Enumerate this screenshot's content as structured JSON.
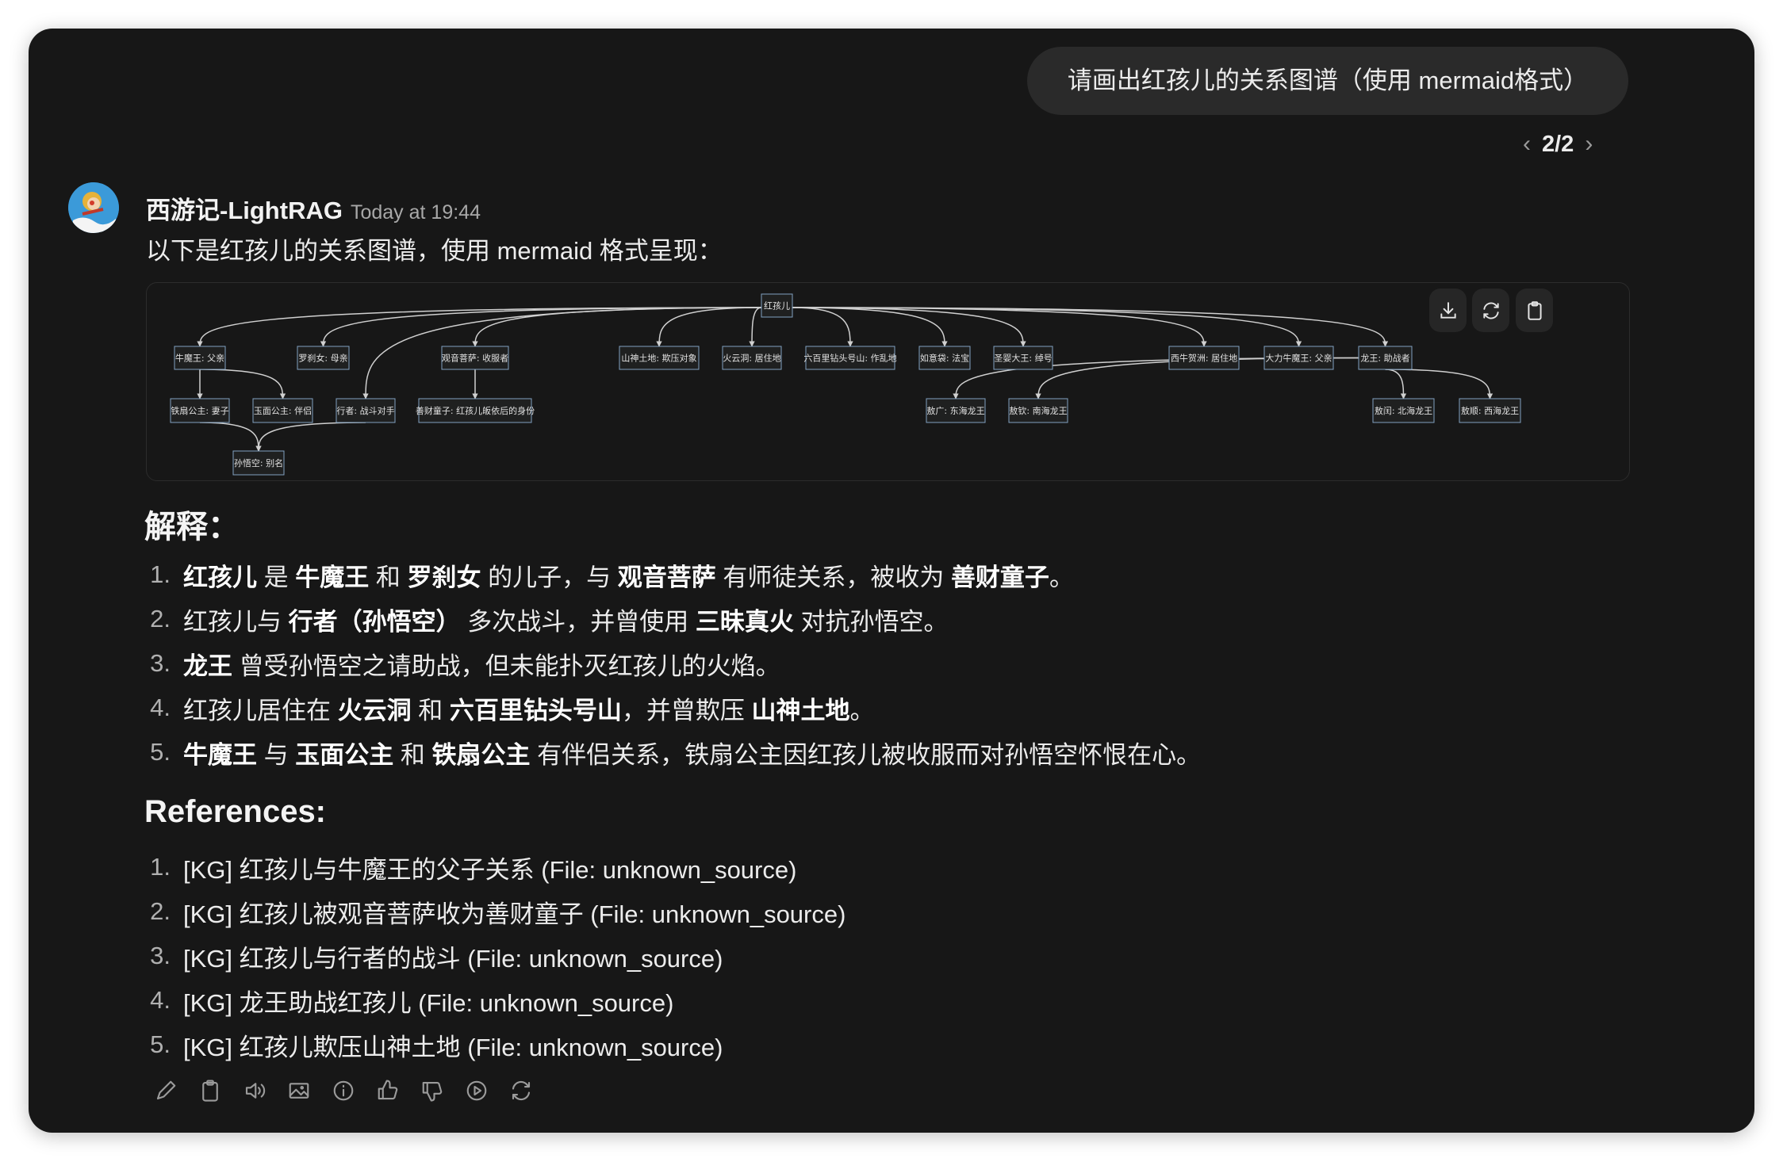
{
  "user_message": {
    "text": "请画出红孩儿的关系图谱（使用 mermaid格式）"
  },
  "pager": {
    "label": "2/2",
    "prev_icon": "chevron-left-icon",
    "next_icon": "chevron-right-icon"
  },
  "assistant": {
    "name": "西游记-LightRAG",
    "timestamp": "Today at 19:44",
    "avatar_icon": "monkey-king-avatar",
    "intro": "以下是红孩儿的关系图谱，使用 mermaid 格式呈现："
  },
  "diagram": {
    "toolbar": [
      "download-icon",
      "refresh-icon",
      "clipboard-icon"
    ],
    "nodes": [
      "红孩儿",
      "牛魔王: 父亲",
      "罗刹女: 母亲",
      "观音菩萨: 收服者",
      "山神土地: 欺压对象",
      "火云洞: 居住地",
      "六百里钻头号山: 作乱地",
      "如意袋: 法宝",
      "圣婴大王: 绰号",
      "西牛贺洲: 居住地",
      "大力牛魔王: 父亲",
      "龙王: 助战者",
      "铁扇公主: 妻子",
      "玉面公主: 伴侣",
      "行者: 战斗对手",
      "善财童子: 红孩儿皈依后的身份",
      "敖广: 东海龙王",
      "敖钦: 南海龙王",
      "敖闰: 北海龙王",
      "敖顺: 西海龙王",
      "孙悟空: 别名"
    ],
    "edges": [
      [
        0,
        1
      ],
      [
        0,
        2
      ],
      [
        0,
        3
      ],
      [
        0,
        4
      ],
      [
        0,
        5
      ],
      [
        0,
        6
      ],
      [
        0,
        7
      ],
      [
        0,
        8
      ],
      [
        0,
        9
      ],
      [
        0,
        10
      ],
      [
        0,
        11
      ],
      [
        0,
        14
      ],
      [
        1,
        12
      ],
      [
        1,
        13
      ],
      [
        3,
        15
      ],
      [
        12,
        20
      ],
      [
        14,
        20
      ],
      [
        11,
        16
      ],
      [
        11,
        17
      ],
      [
        11,
        18
      ],
      [
        11,
        19
      ]
    ],
    "colors": {
      "node_fill": "#1f2020",
      "node_border": "#81a1c1",
      "edge": "#d0d0d0",
      "text": "#e0e0e0"
    }
  },
  "explanation": {
    "heading": "解释：",
    "items": [
      [
        {
          "t": "红孩儿",
          "b": true
        },
        {
          "t": " 是 "
        },
        {
          "t": "牛魔王",
          "b": true
        },
        {
          "t": " 和 "
        },
        {
          "t": "罗刹女",
          "b": true
        },
        {
          "t": " 的儿子，与 "
        },
        {
          "t": "观音菩萨",
          "b": true
        },
        {
          "t": " 有师徒关系，被收为 "
        },
        {
          "t": "善财童子",
          "b": true
        },
        {
          "t": "。"
        }
      ],
      [
        {
          "t": "红孩儿与 "
        },
        {
          "t": "行者（孙悟空）",
          "b": true
        },
        {
          "t": " 多次战斗，并曾使用 "
        },
        {
          "t": "三昧真火",
          "b": true
        },
        {
          "t": " 对抗孙悟空。"
        }
      ],
      [
        {
          "t": "龙王",
          "b": true
        },
        {
          "t": " 曾受孙悟空之请助战，但未能扑灭红孩儿的火焰。"
        }
      ],
      [
        {
          "t": "红孩儿居住在 "
        },
        {
          "t": "火云洞",
          "b": true
        },
        {
          "t": " 和 "
        },
        {
          "t": "六百里钻头号山",
          "b": true
        },
        {
          "t": "，并曾欺压 "
        },
        {
          "t": "山神土地",
          "b": true
        },
        {
          "t": "。"
        }
      ],
      [
        {
          "t": "牛魔王",
          "b": true
        },
        {
          "t": " 与 "
        },
        {
          "t": "玉面公主",
          "b": true
        },
        {
          "t": " 和 "
        },
        {
          "t": "铁扇公主",
          "b": true
        },
        {
          "t": " 有伴侣关系，铁扇公主因红孩儿被收服而对孙悟空怀恨在心。"
        }
      ]
    ]
  },
  "references": {
    "heading": "References:",
    "items": [
      "[KG] 红孩儿与牛魔王的父子关系 (File: unknown_source)",
      "[KG] 红孩儿被观音菩萨收为善财童子 (File: unknown_source)",
      "[KG] 红孩儿与行者的战斗 (File: unknown_source)",
      "[KG] 龙王助战红孩儿 (File: unknown_source)",
      "[KG] 红孩儿欺压山神土地 (File: unknown_source)"
    ]
  },
  "actions": [
    "edit-icon",
    "copy-icon",
    "read-aloud-icon",
    "image-icon",
    "info-icon",
    "thumbs-up-icon",
    "thumbs-down-icon",
    "play-icon",
    "regenerate-icon"
  ]
}
